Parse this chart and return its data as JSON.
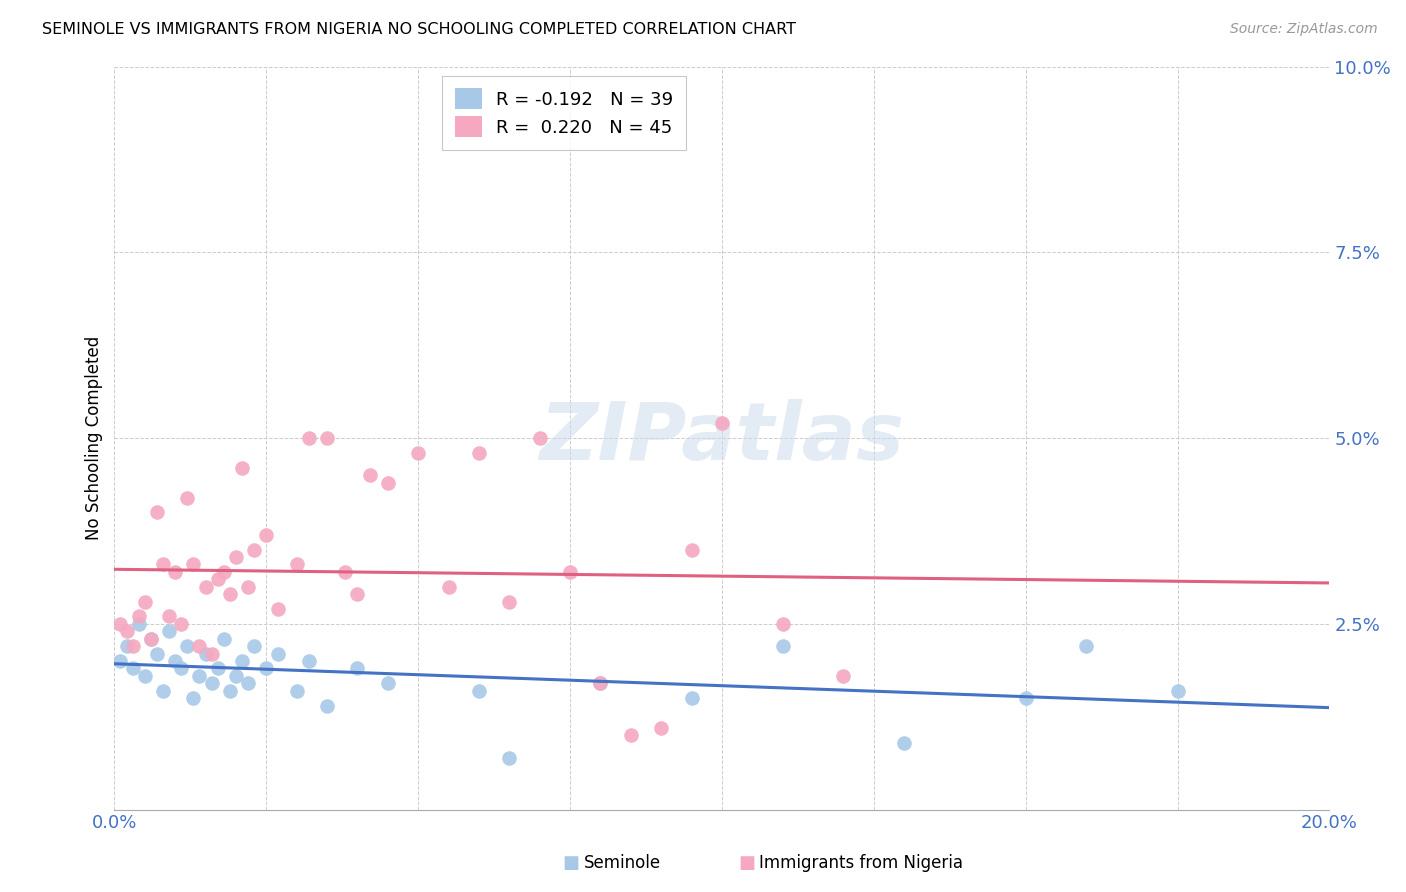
{
  "title": "SEMINOLE VS IMMIGRANTS FROM NIGERIA NO SCHOOLING COMPLETED CORRELATION CHART",
  "source": "Source: ZipAtlas.com",
  "ylabel": "No Schooling Completed",
  "xlim": [
    0.0,
    0.2
  ],
  "ylim": [
    0.0,
    0.1
  ],
  "seminole_color": "#a8c8e8",
  "nigeria_color": "#f5a8c0",
  "seminole_line_color": "#4472c4",
  "nigeria_line_color": "#e06080",
  "legend_seminole": "Seminole",
  "legend_nigeria": "Immigrants from Nigeria",
  "watermark": "ZIPatlas",
  "seminole_x": [
    0.001,
    0.002,
    0.003,
    0.004,
    0.005,
    0.006,
    0.007,
    0.008,
    0.009,
    0.01,
    0.011,
    0.012,
    0.013,
    0.014,
    0.015,
    0.016,
    0.017,
    0.018,
    0.019,
    0.02,
    0.021,
    0.022,
    0.023,
    0.025,
    0.027,
    0.03,
    0.032,
    0.035,
    0.04,
    0.045,
    0.06,
    0.065,
    0.08,
    0.095,
    0.11,
    0.13,
    0.15,
    0.16,
    0.175
  ],
  "seminole_y": [
    0.02,
    0.022,
    0.019,
    0.025,
    0.018,
    0.023,
    0.021,
    0.016,
    0.024,
    0.02,
    0.019,
    0.022,
    0.015,
    0.018,
    0.021,
    0.017,
    0.019,
    0.023,
    0.016,
    0.018,
    0.02,
    0.017,
    0.022,
    0.019,
    0.021,
    0.016,
    0.02,
    0.014,
    0.019,
    0.017,
    0.016,
    0.007,
    0.017,
    0.015,
    0.022,
    0.009,
    0.015,
    0.022,
    0.016
  ],
  "nigeria_x": [
    0.001,
    0.002,
    0.003,
    0.004,
    0.005,
    0.006,
    0.007,
    0.008,
    0.009,
    0.01,
    0.011,
    0.012,
    0.013,
    0.014,
    0.015,
    0.016,
    0.017,
    0.018,
    0.019,
    0.02,
    0.021,
    0.022,
    0.023,
    0.025,
    0.027,
    0.03,
    0.032,
    0.035,
    0.038,
    0.04,
    0.042,
    0.045,
    0.05,
    0.055,
    0.06,
    0.065,
    0.07,
    0.075,
    0.08,
    0.085,
    0.09,
    0.095,
    0.1,
    0.11,
    0.12
  ],
  "nigeria_y": [
    0.025,
    0.024,
    0.022,
    0.026,
    0.028,
    0.023,
    0.04,
    0.033,
    0.026,
    0.032,
    0.025,
    0.042,
    0.033,
    0.022,
    0.03,
    0.021,
    0.031,
    0.032,
    0.029,
    0.034,
    0.046,
    0.03,
    0.035,
    0.037,
    0.027,
    0.033,
    0.05,
    0.05,
    0.032,
    0.029,
    0.045,
    0.044,
    0.048,
    0.03,
    0.048,
    0.028,
    0.05,
    0.032,
    0.017,
    0.01,
    0.011,
    0.035,
    0.052,
    0.025,
    0.018
  ]
}
